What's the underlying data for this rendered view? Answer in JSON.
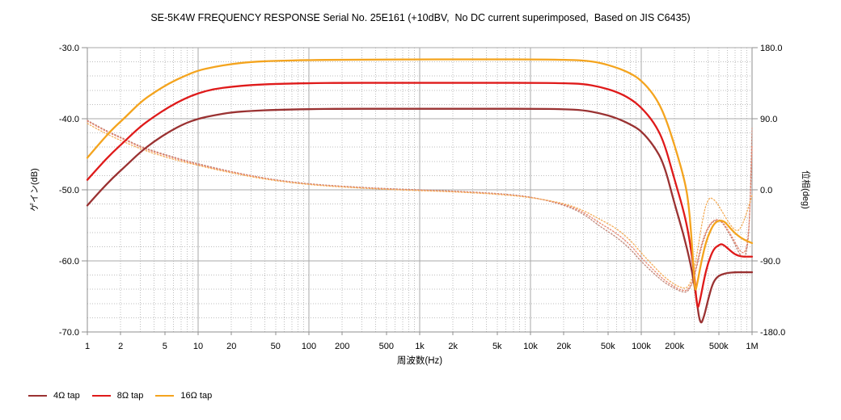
{
  "title": "SE-5K4W FREQUENCY RESPONSE Serial No. 25E161 (+10dBV,  No DC current superimposed,  Based on JIS C6435)",
  "axes": {
    "x_label": "周波数(Hz)",
    "y_left_label": "ゲイン(dB)",
    "y_right_label": "位相(deg)"
  },
  "legend": [
    {
      "label": "4Ω tap",
      "color": "#9a3232"
    },
    {
      "label": "8Ω tap",
      "color": "#df1a1a"
    },
    {
      "label": "16Ω tap",
      "color": "#f4a41e"
    }
  ],
  "colors": {
    "grid_major": "#a9a9a9",
    "grid_minor": "#bdbdbd",
    "axis_frame": "#8f8f8f",
    "text": "#000000"
  },
  "chart_data": {
    "type": "line",
    "title": "SE-5K4W FREQUENCY RESPONSE Serial No. 25E161 (+10dBV,  No DC current superimposed,  Based on JIS C6435)",
    "xlabel": "周波数(Hz)",
    "ylabel_left": "ゲイン(dB)",
    "ylabel_right": "位相(deg)",
    "x_scale": "log",
    "xlim": [
      1,
      1000000
    ],
    "x_tick_values": [
      1,
      2,
      5,
      10,
      20,
      50,
      100,
      200,
      500,
      1000,
      2000,
      5000,
      10000,
      20000,
      50000,
      100000,
      200000,
      500000,
      1000000
    ],
    "x_tick_labels": [
      "1",
      "2",
      "5",
      "10",
      "20",
      "50",
      "100",
      "200",
      "500",
      "1k",
      "2k",
      "5k",
      "10k",
      "20k",
      "50k",
      "100k",
      "200k",
      "500k",
      "1M"
    ],
    "ylim_left": [
      -70,
      -30
    ],
    "y_left_ticks": [
      -30,
      -40,
      -50,
      -60,
      -70
    ],
    "y_left_tick_labels": [
      "-30.0",
      "-40.0",
      "-50.0",
      "-60.0",
      "-70.0"
    ],
    "ylim_right": [
      -180,
      180
    ],
    "y_right_ticks": [
      180,
      90,
      0,
      -90,
      -180
    ],
    "y_right_tick_labels": [
      "180.0",
      "90.0",
      "0.0",
      "-90.0",
      "-180.0"
    ],
    "grid": {
      "major": true,
      "minor": true,
      "minor_db_step": 2
    },
    "legend_position": "bottom-left",
    "series": [
      {
        "id": "gain-4ohm",
        "name": "4Ω tap",
        "quantity": "gain (dB)",
        "axis": "left",
        "line": "solid",
        "width": 2.3,
        "color": "#9a3232",
        "x": [
          1,
          1.3,
          1.7,
          2.2,
          3,
          4,
          5.5,
          7.5,
          10,
          14,
          20,
          30,
          50,
          100,
          200,
          500,
          1000,
          2000,
          5000,
          10000,
          20000,
          30000,
          42000,
          60000,
          80000,
          100000,
          130000,
          160000,
          200000,
          240000,
          280000,
          310000,
          340000,
          370000,
          400000,
          440000,
          480000,
          530000,
          600000,
          700000,
          800000,
          900000,
          1000000
        ],
        "y": [
          -52.2,
          -50.2,
          -48.3,
          -46.7,
          -44.7,
          -43.2,
          -41.8,
          -40.7,
          -40.0,
          -39.5,
          -39.1,
          -38.9,
          -38.75,
          -38.65,
          -38.6,
          -38.6,
          -38.6,
          -38.6,
          -38.6,
          -38.6,
          -38.65,
          -38.8,
          -39.2,
          -39.9,
          -40.8,
          -41.7,
          -43.8,
          -46.3,
          -52.0,
          -56.2,
          -60.5,
          -64.5,
          -69.2,
          -67.8,
          -65.5,
          -63.2,
          -62.3,
          -61.9,
          -61.7,
          -61.6,
          -61.6,
          -61.6,
          -61.6
        ]
      },
      {
        "id": "gain-8ohm",
        "name": "8Ω tap",
        "quantity": "gain (dB)",
        "axis": "left",
        "line": "solid",
        "width": 2.3,
        "color": "#df1a1a",
        "x": [
          1,
          1.3,
          1.7,
          2.2,
          3,
          4,
          5.5,
          7.5,
          10,
          14,
          20,
          30,
          50,
          100,
          200,
          500,
          1000,
          2000,
          5000,
          10000,
          20000,
          30000,
          42000,
          60000,
          80000,
          100000,
          130000,
          160000,
          200000,
          240000,
          270000,
          300000,
          320000,
          340000,
          370000,
          400000,
          450000,
          500000,
          530000,
          570000,
          620000,
          700000,
          800000,
          900000,
          1000000
        ],
        "y": [
          -48.6,
          -46.6,
          -44.7,
          -43.1,
          -41.1,
          -39.7,
          -38.3,
          -37.2,
          -36.4,
          -35.8,
          -35.5,
          -35.25,
          -35.1,
          -35.0,
          -34.95,
          -34.95,
          -34.95,
          -34.95,
          -34.95,
          -34.95,
          -35.0,
          -35.1,
          -35.5,
          -36.2,
          -37.2,
          -38.4,
          -40.5,
          -43.2,
          -48.6,
          -52.8,
          -56.5,
          -61.5,
          -67.1,
          -65.5,
          -62.5,
          -60.3,
          -58.3,
          -57.8,
          -57.6,
          -57.9,
          -58.4,
          -59.1,
          -59.4,
          -59.4,
          -59.4
        ]
      },
      {
        "id": "gain-16ohm",
        "name": "16Ω tap",
        "quantity": "gain (dB)",
        "axis": "left",
        "line": "solid",
        "width": 2.3,
        "color": "#f4a41e",
        "x": [
          1,
          1.3,
          1.7,
          2.2,
          3,
          4,
          5.5,
          7.5,
          10,
          14,
          20,
          30,
          50,
          100,
          200,
          500,
          1000,
          2000,
          5000,
          10000,
          20000,
          30000,
          42000,
          60000,
          80000,
          100000,
          130000,
          160000,
          200000,
          250000,
          270000,
          290000,
          305000,
          320000,
          340000,
          370000,
          400000,
          450000,
          500000,
          560000,
          620000,
          700000,
          800000,
          900000,
          1000000
        ],
        "y": [
          -45.5,
          -43.4,
          -41.4,
          -39.8,
          -37.7,
          -36.3,
          -35.0,
          -34.0,
          -33.2,
          -32.7,
          -32.3,
          -32.0,
          -31.85,
          -31.75,
          -31.7,
          -31.68,
          -31.65,
          -31.65,
          -31.65,
          -31.65,
          -31.7,
          -31.8,
          -32.1,
          -32.8,
          -33.6,
          -34.6,
          -36.6,
          -39.2,
          -43.7,
          -49.0,
          -52.5,
          -58.5,
          -64.6,
          -63.2,
          -61.0,
          -58.3,
          -56.5,
          -54.8,
          -54.3,
          -54.4,
          -55.2,
          -56.1,
          -56.8,
          -57.2,
          -57.5
        ]
      },
      {
        "id": "phase-4ohm",
        "name": "4Ω tap phase",
        "quantity": "phase (deg)",
        "axis": "right",
        "line": "dotted",
        "width": 1.3,
        "color": "#c08577",
        "x": [
          1,
          1.3,
          1.7,
          2.2,
          3,
          4,
          5.5,
          7.5,
          10,
          14,
          20,
          30,
          50,
          100,
          200,
          500,
          1000,
          2000,
          5000,
          10000,
          20000,
          30000,
          42000,
          60000,
          80000,
          100000,
          130000,
          160000,
          200000,
          230000,
          260000,
          290000,
          320000,
          350000,
          390000,
          430000,
          470000,
          510000,
          550000,
          600000,
          650000,
          700000,
          750000,
          800000,
          850000,
          890000,
          930000,
          955000,
          975000,
          1000000
        ],
        "y": [
          88,
          79,
          71,
          64,
          55,
          49,
          43,
          37.5,
          33,
          28,
          23,
          18,
          12.5,
          7.5,
          4.5,
          1.5,
          0,
          -1.5,
          -4.5,
          -8.5,
          -19,
          -30,
          -46,
          -60,
          -75,
          -91,
          -106,
          -117,
          -125,
          -129,
          -130,
          -119,
          -95,
          -72,
          -52,
          -42,
          -38.5,
          -39,
          -43,
          -52,
          -60,
          -69,
          -78,
          -84,
          -86,
          -79,
          -60,
          -25,
          20,
          78
        ]
      },
      {
        "id": "phase-8ohm",
        "name": "8Ω tap phase",
        "quantity": "phase (deg)",
        "axis": "right",
        "line": "dotted",
        "width": 1.3,
        "color": "#e8836c",
        "x": [
          1,
          1.3,
          1.7,
          2.2,
          3,
          4,
          5.5,
          7.5,
          10,
          14,
          20,
          30,
          50,
          100,
          200,
          500,
          1000,
          2000,
          5000,
          10000,
          20000,
          30000,
          42000,
          60000,
          80000,
          100000,
          130000,
          160000,
          200000,
          230000,
          260000,
          290000,
          320000,
          350000,
          390000,
          430000,
          470000,
          510000,
          550000,
          600000,
          650000,
          700000,
          750000,
          800000,
          850000,
          890000,
          930000,
          960000,
          980000,
          1000000
        ],
        "y": [
          87,
          78,
          70,
          63,
          54,
          48,
          42,
          36.5,
          32,
          27,
          22.5,
          17.5,
          12,
          7,
          4,
          1,
          -0.5,
          -2,
          -5,
          -9,
          -18,
          -28,
          -42,
          -55,
          -70,
          -86,
          -102,
          -114,
          -123,
          -127,
          -128,
          -117,
          -92,
          -68,
          -50,
          -41,
          -37.5,
          -38,
          -42,
          -50,
          -58,
          -66,
          -74,
          -79,
          -80,
          -74,
          -55,
          -20,
          15,
          55
        ]
      },
      {
        "id": "phase-16ohm",
        "name": "16Ω tap phase",
        "quantity": "phase (deg)",
        "axis": "right",
        "line": "dotted",
        "width": 1.3,
        "color": "#f3ab55",
        "x": [
          1,
          1.3,
          1.7,
          2.2,
          3,
          4,
          5.5,
          7.5,
          10,
          14,
          20,
          30,
          50,
          100,
          200,
          500,
          1000,
          2000,
          5000,
          10000,
          20000,
          30000,
          42000,
          60000,
          80000,
          100000,
          130000,
          160000,
          200000,
          230000,
          260000,
          290000,
          320000,
          350000,
          380000,
          410000,
          425000,
          460000,
          500000,
          550000,
          600000,
          650000,
          700000,
          750000,
          800000,
          850000,
          900000,
          950000,
          1000000
        ],
        "y": [
          84,
          75,
          67,
          60,
          52,
          46,
          40,
          35,
          31,
          26,
          21.5,
          16.5,
          11.5,
          6.5,
          3.5,
          0.5,
          -1,
          -2.5,
          -5.5,
          -9.5,
          -17,
          -26,
          -37,
          -49,
          -64,
          -80,
          -97,
          -110,
          -120,
          -124,
          -125,
          -112,
          -80,
          -45,
          -20,
          -11,
          -10,
          -13,
          -20,
          -30,
          -39,
          -46,
          -51,
          -52,
          -47,
          -38,
          -28,
          -17,
          -7
        ]
      }
    ]
  }
}
